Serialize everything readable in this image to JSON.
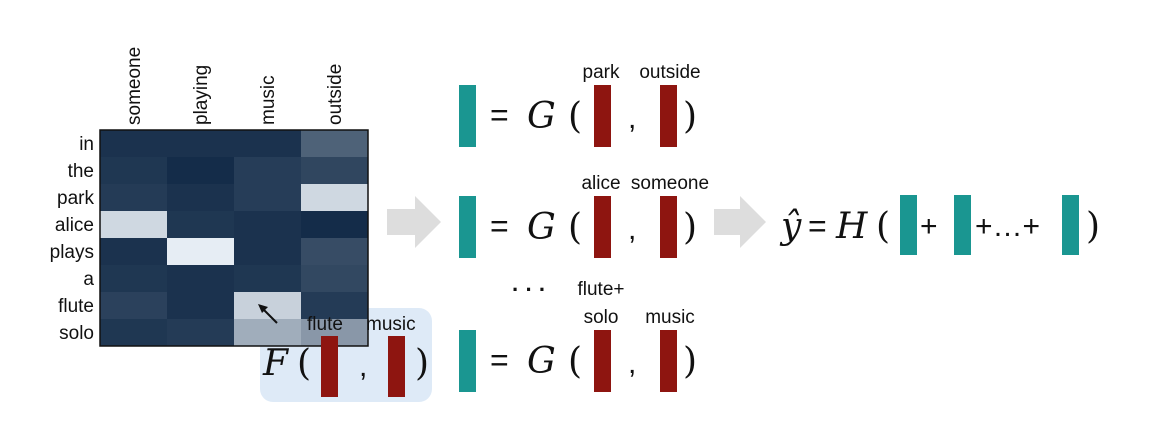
{
  "chart_data": {
    "type": "heatmap",
    "columns": [
      "someone",
      "playing",
      "music",
      "outside"
    ],
    "rows": [
      "in",
      "the",
      "park",
      "alice",
      "plays",
      "a",
      "flute",
      "solo"
    ],
    "values": [
      [
        0.08,
        0.08,
        0.08,
        0.3
      ],
      [
        0.1,
        0.05,
        0.13,
        0.17
      ],
      [
        0.12,
        0.08,
        0.13,
        0.85
      ],
      [
        0.85,
        0.1,
        0.08,
        0.05
      ],
      [
        0.08,
        0.95,
        0.08,
        0.2
      ],
      [
        0.1,
        0.08,
        0.1,
        0.18
      ],
      [
        0.15,
        0.08,
        0.82,
        0.12
      ],
      [
        0.1,
        0.12,
        0.65,
        0.55
      ]
    ],
    "colors": {
      "low": "#08213f",
      "high": "#f2f8fd"
    }
  },
  "colors": {
    "teal": "#1a9691",
    "red": "#8e1510",
    "arrow": "#dddddd",
    "highlight": "#c8dcf1"
  },
  "f_block": {
    "func": "F",
    "open": "(",
    "comma": ",",
    "close": ")",
    "label1": "flute",
    "label2": "music"
  },
  "equations": [
    {
      "eq": "=",
      "func": "G",
      "open": "(",
      "comma": ",",
      "close": ")",
      "label1": [
        "park"
      ],
      "label2": [
        "outside"
      ]
    },
    {
      "eq": "=",
      "func": "G",
      "open": "(",
      "comma": ",",
      "close": ")",
      "label1": [
        "alice"
      ],
      "label2": [
        "someone"
      ]
    },
    {
      "eq": "=",
      "func": "G",
      "open": "(",
      "comma": ",",
      "close": ")",
      "label1": [
        "flute+",
        "solo"
      ],
      "label2": [
        "music"
      ]
    }
  ],
  "ellipsis": "· · ·",
  "output": {
    "yhat": "ŷ",
    "eq": "=",
    "func": "H",
    "open": "(",
    "plus1": "+",
    "plus2": "+…+",
    "close": ")"
  }
}
